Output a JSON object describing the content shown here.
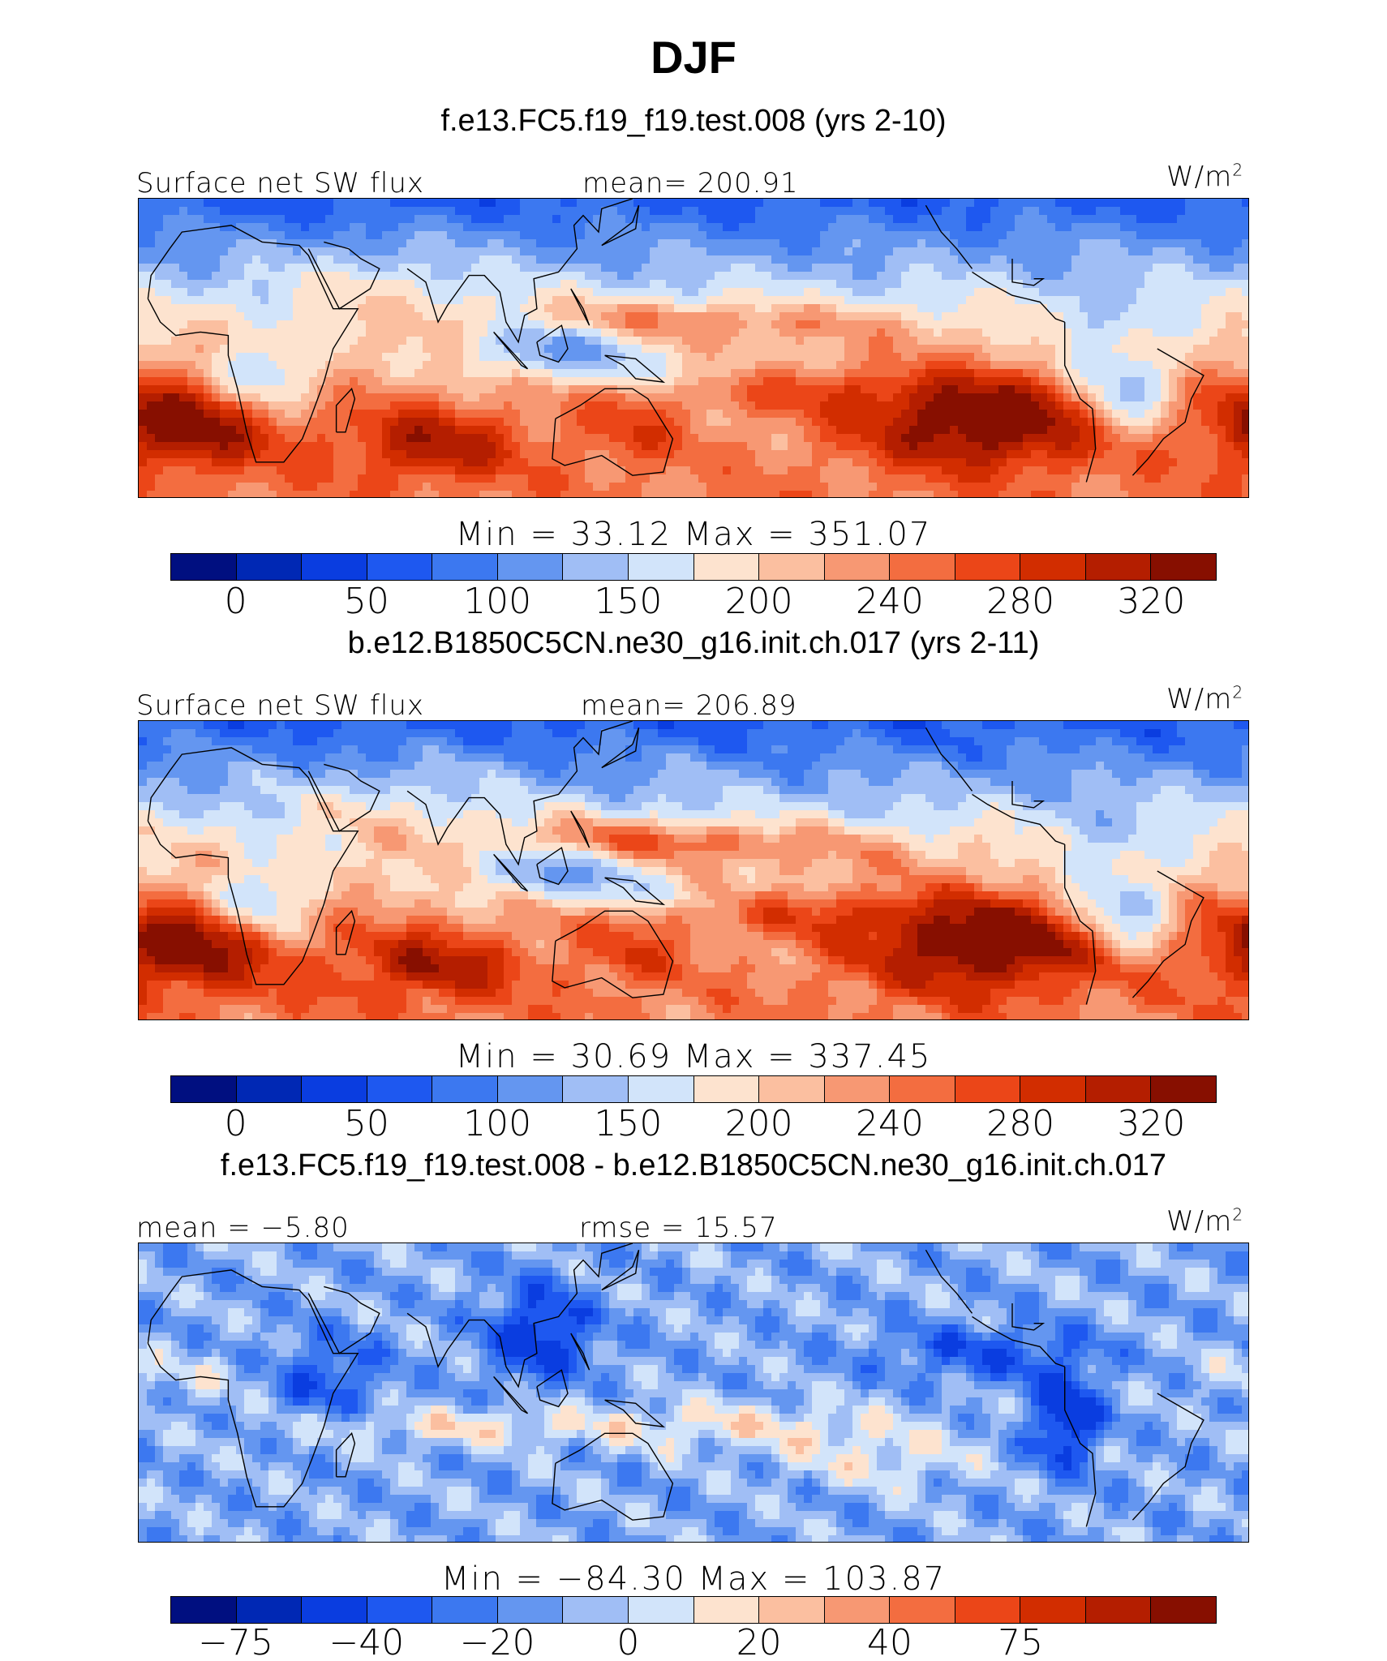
{
  "figure": {
    "title": "DJF"
  },
  "palette": [
    "#000f80",
    "#0028b4",
    "#0a3de0",
    "#1e58f0",
    "#3c78f0",
    "#6496f0",
    "#a0bef5",
    "#d2e4fa",
    "#fde3cf",
    "#fbbfa0",
    "#f79873",
    "#f36d40",
    "#eb4618",
    "#d22d00",
    "#b41e00",
    "#870f00"
  ],
  "panels": [
    {
      "case_title": "f.e13.FC5.f19_f19.test.008 (yrs 2-10)",
      "left_label": "Surface net SW flux",
      "center_label": "mean= 200.91",
      "units": "W/m2",
      "minmax": "Min =  33.12 Max = 351.07",
      "cbar_ticks": [
        "0",
        "50",
        "100",
        "150",
        "200",
        "240",
        "280",
        "320"
      ],
      "field": "model"
    },
    {
      "case_title": "b.e12.B1850C5CN.ne30_g16.init.ch.017 (yrs 2-11)",
      "left_label": "Surface net SW flux",
      "center_label": "mean= 206.89",
      "units": "W/m2",
      "minmax": "Min =  30.69 Max = 337.45",
      "cbar_ticks": [
        "0",
        "50",
        "100",
        "150",
        "200",
        "240",
        "280",
        "320"
      ],
      "field": "control"
    },
    {
      "case_title": "f.e13.FC5.f19_f19.test.008 - b.e12.B1850C5CN.ne30_g16.init.ch.017",
      "left_label": "mean =  −5.80",
      "center_label": "rmse =   15.57",
      "units": "W/m2",
      "minmax": "Min = −84.30 Max = 103.87",
      "cbar_ticks": [
        "−75",
        "−40",
        "−20",
        "0",
        "20",
        "40",
        "75"
      ],
      "field": "difference"
    }
  ]
}
